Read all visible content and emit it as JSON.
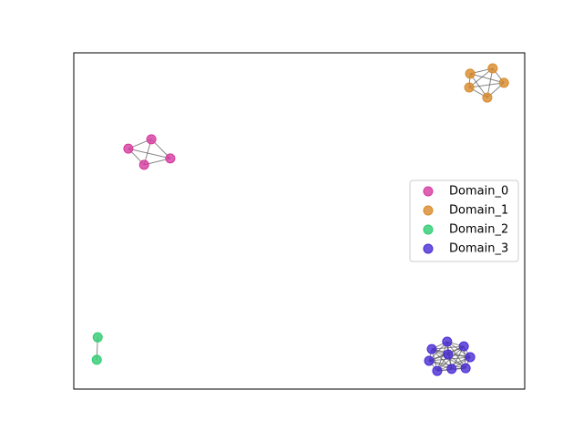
{
  "chart_data": {
    "type": "network",
    "xlim": [
      0,
      1
    ],
    "ylim": [
      0,
      1
    ],
    "legend": "right",
    "series": [
      {
        "name": "Domain_0",
        "color": "#d6399f",
        "x": [
          0.121,
          0.172,
          0.214,
          0.156
        ],
        "y": [
          0.715,
          0.743,
          0.686,
          0.667
        ],
        "edges": [
          [
            0,
            1
          ],
          [
            0,
            2
          ],
          [
            0,
            3
          ],
          [
            1,
            2
          ],
          [
            1,
            3
          ],
          [
            2,
            3
          ]
        ]
      },
      {
        "name": "Domain_1",
        "color": "#d98a2a",
        "x": [
          0.879,
          0.929,
          0.954,
          0.917,
          0.877
        ],
        "y": [
          0.938,
          0.954,
          0.911,
          0.867,
          0.897
        ],
        "edges": [
          [
            0,
            1
          ],
          [
            0,
            2
          ],
          [
            0,
            3
          ],
          [
            0,
            4
          ],
          [
            1,
            2
          ],
          [
            1,
            3
          ],
          [
            1,
            4
          ],
          [
            2,
            3
          ],
          [
            2,
            4
          ],
          [
            3,
            4
          ]
        ]
      },
      {
        "name": "Domain_2",
        "color": "#2ecc71",
        "x": [
          0.053,
          0.051
        ],
        "y": [
          0.154,
          0.087
        ],
        "edges": [
          [
            0,
            1
          ]
        ]
      },
      {
        "name": "Domain_3",
        "color": "#4a2bd6",
        "x": [
          0.828,
          0.865,
          0.879,
          0.869,
          0.838,
          0.806,
          0.788,
          0.794,
          0.83
        ],
        "y": [
          0.141,
          0.127,
          0.095,
          0.062,
          0.06,
          0.054,
          0.084,
          0.119,
          0.103
        ],
        "edges": [
          [
            0,
            1
          ],
          [
            0,
            2
          ],
          [
            0,
            3
          ],
          [
            0,
            4
          ],
          [
            0,
            5
          ],
          [
            0,
            6
          ],
          [
            0,
            7
          ],
          [
            0,
            8
          ],
          [
            1,
            2
          ],
          [
            1,
            3
          ],
          [
            1,
            4
          ],
          [
            1,
            5
          ],
          [
            1,
            6
          ],
          [
            1,
            7
          ],
          [
            1,
            8
          ],
          [
            2,
            3
          ],
          [
            2,
            4
          ],
          [
            2,
            5
          ],
          [
            2,
            6
          ],
          [
            2,
            7
          ],
          [
            2,
            8
          ],
          [
            3,
            4
          ],
          [
            3,
            5
          ],
          [
            3,
            6
          ],
          [
            3,
            7
          ],
          [
            3,
            8
          ],
          [
            4,
            5
          ],
          [
            4,
            6
          ],
          [
            4,
            7
          ],
          [
            4,
            8
          ],
          [
            5,
            6
          ],
          [
            5,
            7
          ],
          [
            5,
            8
          ],
          [
            6,
            7
          ],
          [
            6,
            8
          ],
          [
            7,
            8
          ]
        ]
      }
    ]
  }
}
